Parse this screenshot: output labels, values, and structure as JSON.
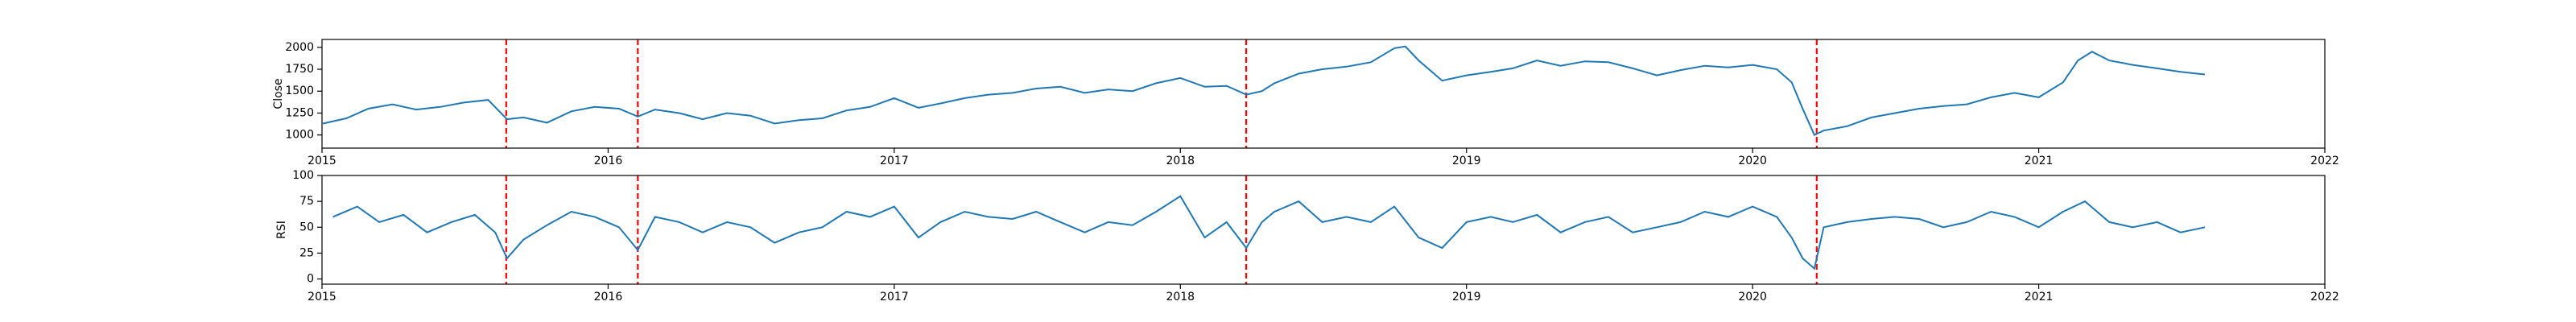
{
  "chart_data": [
    {
      "type": "line",
      "ylabel": "Close",
      "xlim": [
        "2015-01-01",
        "2022-01-01"
      ],
      "ylim": [
        850,
        2090
      ],
      "x_ticks": [
        "2015",
        "2016",
        "2017",
        "2018",
        "2019",
        "2020",
        "2021",
        "2022"
      ],
      "y_ticks": [
        1000,
        1250,
        1500,
        1750,
        2000
      ],
      "series": [
        {
          "color": "#1f77b4",
          "points": [
            [
              "2015-01-02",
              1130
            ],
            [
              "2015-02-01",
              1190
            ],
            [
              "2015-03-01",
              1300
            ],
            [
              "2015-04-01",
              1350
            ],
            [
              "2015-05-01",
              1290
            ],
            [
              "2015-06-01",
              1320
            ],
            [
              "2015-07-01",
              1370
            ],
            [
              "2015-08-01",
              1400
            ],
            [
              "2015-08-25",
              1180
            ],
            [
              "2015-09-15",
              1200
            ],
            [
              "2015-10-15",
              1140
            ],
            [
              "2015-11-15",
              1270
            ],
            [
              "2015-12-15",
              1320
            ],
            [
              "2016-01-15",
              1300
            ],
            [
              "2016-02-08",
              1210
            ],
            [
              "2016-03-01",
              1290
            ],
            [
              "2016-04-01",
              1250
            ],
            [
              "2016-05-01",
              1180
            ],
            [
              "2016-06-01",
              1250
            ],
            [
              "2016-07-01",
              1220
            ],
            [
              "2016-08-01",
              1130
            ],
            [
              "2016-09-01",
              1170
            ],
            [
              "2016-10-01",
              1190
            ],
            [
              "2016-11-01",
              1280
            ],
            [
              "2016-12-01",
              1320
            ],
            [
              "2017-01-01",
              1420
            ],
            [
              "2017-02-01",
              1310
            ],
            [
              "2017-03-01",
              1360
            ],
            [
              "2017-04-01",
              1420
            ],
            [
              "2017-05-01",
              1460
            ],
            [
              "2017-06-01",
              1480
            ],
            [
              "2017-07-01",
              1530
            ],
            [
              "2017-08-01",
              1550
            ],
            [
              "2017-09-01",
              1480
            ],
            [
              "2017-10-01",
              1520
            ],
            [
              "2017-11-01",
              1500
            ],
            [
              "2017-12-01",
              1590
            ],
            [
              "2018-01-01",
              1650
            ],
            [
              "2018-02-01",
              1550
            ],
            [
              "2018-03-01",
              1560
            ],
            [
              "2018-03-26",
              1460
            ],
            [
              "2018-04-15",
              1500
            ],
            [
              "2018-05-01",
              1590
            ],
            [
              "2018-06-01",
              1700
            ],
            [
              "2018-07-01",
              1750
            ],
            [
              "2018-08-01",
              1780
            ],
            [
              "2018-09-01",
              1830
            ],
            [
              "2018-10-01",
              1990
            ],
            [
              "2018-10-15",
              2010
            ],
            [
              "2018-11-01",
              1850
            ],
            [
              "2018-12-01",
              1620
            ],
            [
              "2019-01-01",
              1680
            ],
            [
              "2019-02-01",
              1720
            ],
            [
              "2019-03-01",
              1760
            ],
            [
              "2019-04-01",
              1850
            ],
            [
              "2019-05-01",
              1790
            ],
            [
              "2019-06-01",
              1840
            ],
            [
              "2019-07-01",
              1830
            ],
            [
              "2019-08-01",
              1760
            ],
            [
              "2019-09-01",
              1680
            ],
            [
              "2019-10-01",
              1740
            ],
            [
              "2019-11-01",
              1790
            ],
            [
              "2019-12-01",
              1770
            ],
            [
              "2020-01-01",
              1800
            ],
            [
              "2020-02-01",
              1750
            ],
            [
              "2020-02-20",
              1600
            ],
            [
              "2020-03-05",
              1300
            ],
            [
              "2020-03-20",
              1000
            ],
            [
              "2020-04-01",
              1050
            ],
            [
              "2020-05-01",
              1100
            ],
            [
              "2020-06-01",
              1200
            ],
            [
              "2020-07-01",
              1250
            ],
            [
              "2020-08-01",
              1300
            ],
            [
              "2020-09-01",
              1330
            ],
            [
              "2020-10-01",
              1350
            ],
            [
              "2020-11-01",
              1430
            ],
            [
              "2020-12-01",
              1480
            ],
            [
              "2021-01-01",
              1430
            ],
            [
              "2021-02-01",
              1600
            ],
            [
              "2021-02-20",
              1850
            ],
            [
              "2021-03-10",
              1950
            ],
            [
              "2021-04-01",
              1850
            ],
            [
              "2021-05-01",
              1800
            ],
            [
              "2021-06-01",
              1760
            ],
            [
              "2021-07-01",
              1720
            ],
            [
              "2021-08-01",
              1690
            ]
          ]
        }
      ],
      "vlines": {
        "color": "#ff0000",
        "style": "dashed",
        "dates": [
          "2015-08-24",
          "2016-02-08",
          "2018-03-26",
          "2020-03-23"
        ]
      }
    },
    {
      "type": "line",
      "ylabel": "RSI",
      "xlim": [
        "2015-01-01",
        "2022-01-01"
      ],
      "ylim": [
        -5,
        100
      ],
      "x_ticks": [
        "2015",
        "2016",
        "2017",
        "2018",
        "2019",
        "2020",
        "2021",
        "2022"
      ],
      "y_ticks": [
        0,
        25,
        50,
        75,
        100
      ],
      "series": [
        {
          "color": "#1f77b4",
          "points": [
            [
              "2015-01-15",
              60
            ],
            [
              "2015-02-15",
              70
            ],
            [
              "2015-03-15",
              55
            ],
            [
              "2015-04-15",
              62
            ],
            [
              "2015-05-15",
              45
            ],
            [
              "2015-06-15",
              55
            ],
            [
              "2015-07-15",
              62
            ],
            [
              "2015-08-10",
              45
            ],
            [
              "2015-08-25",
              20
            ],
            [
              "2015-09-15",
              38
            ],
            [
              "2015-10-15",
              52
            ],
            [
              "2015-11-15",
              65
            ],
            [
              "2015-12-15",
              60
            ],
            [
              "2016-01-15",
              50
            ],
            [
              "2016-02-08",
              28
            ],
            [
              "2016-03-01",
              60
            ],
            [
              "2016-04-01",
              55
            ],
            [
              "2016-05-01",
              45
            ],
            [
              "2016-06-01",
              55
            ],
            [
              "2016-07-01",
              50
            ],
            [
              "2016-08-01",
              35
            ],
            [
              "2016-09-01",
              45
            ],
            [
              "2016-10-01",
              50
            ],
            [
              "2016-11-01",
              65
            ],
            [
              "2016-12-01",
              60
            ],
            [
              "2017-01-01",
              70
            ],
            [
              "2017-02-01",
              40
            ],
            [
              "2017-03-01",
              55
            ],
            [
              "2017-04-01",
              65
            ],
            [
              "2017-05-01",
              60
            ],
            [
              "2017-06-01",
              58
            ],
            [
              "2017-07-01",
              65
            ],
            [
              "2017-08-01",
              55
            ],
            [
              "2017-09-01",
              45
            ],
            [
              "2017-10-01",
              55
            ],
            [
              "2017-11-01",
              52
            ],
            [
              "2017-12-01",
              65
            ],
            [
              "2018-01-01",
              80
            ],
            [
              "2018-02-01",
              40
            ],
            [
              "2018-03-01",
              55
            ],
            [
              "2018-03-26",
              30
            ],
            [
              "2018-04-15",
              55
            ],
            [
              "2018-05-01",
              65
            ],
            [
              "2018-06-01",
              75
            ],
            [
              "2018-07-01",
              55
            ],
            [
              "2018-08-01",
              60
            ],
            [
              "2018-09-01",
              55
            ],
            [
              "2018-10-01",
              70
            ],
            [
              "2018-11-01",
              40
            ],
            [
              "2018-12-01",
              30
            ],
            [
              "2019-01-01",
              55
            ],
            [
              "2019-02-01",
              60
            ],
            [
              "2019-03-01",
              55
            ],
            [
              "2019-04-01",
              62
            ],
            [
              "2019-05-01",
              45
            ],
            [
              "2019-06-01",
              55
            ],
            [
              "2019-07-01",
              60
            ],
            [
              "2019-08-01",
              45
            ],
            [
              "2019-09-01",
              50
            ],
            [
              "2019-10-01",
              55
            ],
            [
              "2019-11-01",
              65
            ],
            [
              "2019-12-01",
              60
            ],
            [
              "2020-01-01",
              70
            ],
            [
              "2020-02-01",
              60
            ],
            [
              "2020-02-20",
              40
            ],
            [
              "2020-03-05",
              20
            ],
            [
              "2020-03-20",
              10
            ],
            [
              "2020-04-01",
              50
            ],
            [
              "2020-05-01",
              55
            ],
            [
              "2020-06-01",
              58
            ],
            [
              "2020-07-01",
              60
            ],
            [
              "2020-08-01",
              58
            ],
            [
              "2020-09-01",
              50
            ],
            [
              "2020-10-01",
              55
            ],
            [
              "2020-11-01",
              65
            ],
            [
              "2020-12-01",
              60
            ],
            [
              "2021-01-01",
              50
            ],
            [
              "2021-02-01",
              65
            ],
            [
              "2021-03-01",
              75
            ],
            [
              "2021-04-01",
              55
            ],
            [
              "2021-05-01",
              50
            ],
            [
              "2021-06-01",
              55
            ],
            [
              "2021-07-01",
              45
            ],
            [
              "2021-08-01",
              50
            ]
          ]
        }
      ],
      "vlines": {
        "color": "#ff0000",
        "style": "dashed",
        "dates": [
          "2015-08-24",
          "2016-02-08",
          "2018-03-26",
          "2020-03-23"
        ]
      }
    }
  ]
}
